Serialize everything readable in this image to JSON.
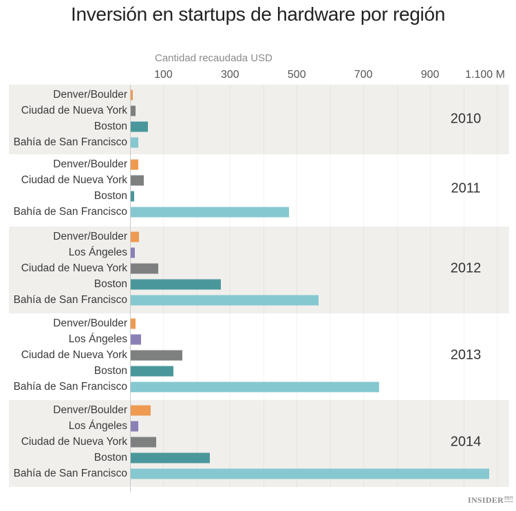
{
  "title": "Inversión en startups de hardware por región",
  "axis": {
    "label": "Cantidad recaudada USD",
    "ticks": [
      {
        "label": "100",
        "value": 100
      },
      {
        "label": "300",
        "value": 300
      },
      {
        "label": "500",
        "value": 500
      },
      {
        "label": "700",
        "value": 700
      },
      {
        "label": "900",
        "value": 900
      },
      {
        "label": "1.100 M",
        "value": 1100
      }
    ]
  },
  "colors": {
    "Denver/Boulder": "#EE9A50",
    "Los Ángeles": "#8B80B6",
    "Ciudad de Nueva York": "#7E8080",
    "Boston": "#4A979B",
    "Bahía de San Francisco": "#86C8CF",
    "panel_shaded": "#F0EFEC"
  },
  "logo": {
    "main": "INSIDER",
    "sub": "PRO"
  },
  "chart_data": {
    "type": "bar",
    "orientation": "horizontal",
    "title": "Inversión en startups de hardware por región",
    "xlabel": "Cantidad recaudada USD (millones)",
    "ylabel": "",
    "xlim": [
      0,
      1100
    ],
    "xticks": [
      "100",
      "300",
      "500",
      "700",
      "900",
      "1.100 M"
    ],
    "grid": true,
    "groups": [
      {
        "year": "2010",
        "shaded": true,
        "bars": [
          {
            "region": "Denver/Boulder",
            "value": 8
          },
          {
            "region": "Ciudad de Nueva York",
            "value": 17
          },
          {
            "region": "Boston",
            "value": 53
          },
          {
            "region": "Bahía de San Francisco",
            "value": 25
          }
        ]
      },
      {
        "year": "2011",
        "shaded": false,
        "bars": [
          {
            "region": "Denver/Boulder",
            "value": 24
          },
          {
            "region": "Ciudad de Nueva York",
            "value": 41
          },
          {
            "region": "Boston",
            "value": 13
          },
          {
            "region": "Bahía de San Francisco",
            "value": 476
          }
        ]
      },
      {
        "year": "2012",
        "shaded": true,
        "bars": [
          {
            "region": "Denver/Boulder",
            "value": 27
          },
          {
            "region": "Los Ángeles",
            "value": 14
          },
          {
            "region": "Ciudad de Nueva York",
            "value": 85
          },
          {
            "region": "Boston",
            "value": 272
          },
          {
            "region": "Bahía de San Francisco",
            "value": 565
          }
        ]
      },
      {
        "year": "2013",
        "shaded": false,
        "bars": [
          {
            "region": "Denver/Boulder",
            "value": 17
          },
          {
            "region": "Los Ángeles",
            "value": 32
          },
          {
            "region": "Ciudad de Nueva York",
            "value": 156
          },
          {
            "region": "Boston",
            "value": 130
          },
          {
            "region": "Bahía de San Francisco",
            "value": 748
          }
        ]
      },
      {
        "year": "2014",
        "shaded": true,
        "bars": [
          {
            "region": "Denver/Boulder",
            "value": 62
          },
          {
            "region": "Los Ángeles",
            "value": 25
          },
          {
            "region": "Ciudad de Nueva York",
            "value": 79
          },
          {
            "region": "Boston",
            "value": 239
          },
          {
            "region": "Bahía de San Francisco",
            "value": 1078
          }
        ]
      }
    ]
  }
}
